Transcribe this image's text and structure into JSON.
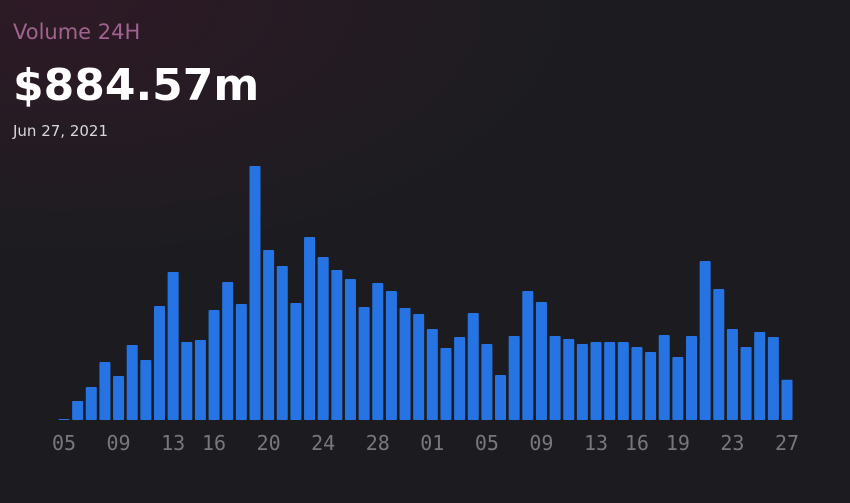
{
  "chart_data": {
    "type": "bar",
    "title": "Volume 24H",
    "headline": "$884.57m",
    "date": "Jun 27, 2021",
    "color": "#2674e3",
    "categories": [
      "05",
      null,
      null,
      null,
      "09",
      null,
      null,
      null,
      "13",
      null,
      null,
      "16",
      null,
      null,
      null,
      "20",
      null,
      null,
      null,
      "24",
      null,
      null,
      null,
      "28",
      null,
      null,
      null,
      "01",
      null,
      null,
      null,
      "05",
      null,
      null,
      null,
      "09",
      null,
      null,
      null,
      "13",
      null,
      null,
      "16",
      null,
      null,
      "19",
      null,
      null,
      null,
      "23",
      null,
      null,
      null,
      "27"
    ],
    "values": [
      22,
      418,
      726,
      1276,
      968,
      1650,
      1320,
      2508,
      3256,
      1716,
      1760,
      2420,
      3036,
      2552,
      5588,
      3740,
      3388,
      2574,
      4026,
      3586,
      3300,
      3102,
      2486,
      3014,
      2838,
      2464,
      2332,
      2002,
      1584,
      1826,
      2354,
      1672,
      990,
      1848,
      2838,
      2596,
      1848,
      1782,
      1672,
      1716,
      1716,
      1716,
      1606,
      1496,
      1870,
      1386,
      1848,
      3498,
      2882,
      2002,
      1606,
      1936,
      1826,
      884.57
    ]
  }
}
